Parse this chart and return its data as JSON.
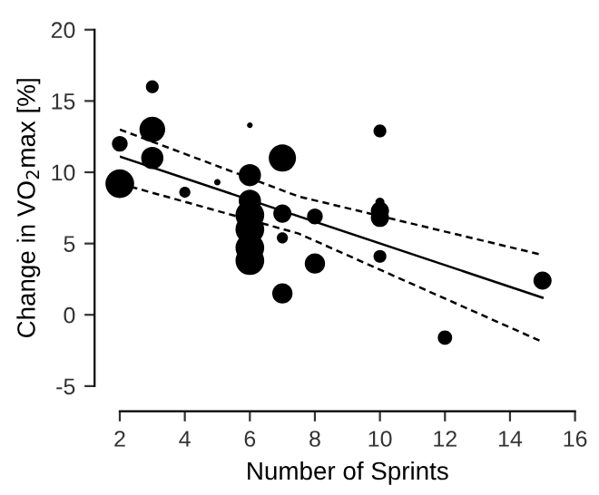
{
  "chart_data": {
    "type": "bubble",
    "xlabel": "Number of Sprints",
    "ylabel": "Change in VO$_{2}$max [%]",
    "xlim": [
      2,
      16
    ],
    "ylim": [
      -5,
      20
    ],
    "xticks": [
      2,
      4,
      6,
      8,
      10,
      12,
      14,
      16
    ],
    "yticks": [
      -5,
      0,
      5,
      10,
      15,
      20
    ],
    "grid": false,
    "series": [
      {
        "color": "#000000",
        "x": [
          2,
          2,
          3,
          3,
          3,
          4,
          5,
          6,
          6,
          6,
          6,
          6,
          6.0,
          6,
          7,
          7,
          7,
          7,
          8,
          8,
          10,
          10,
          10,
          10,
          10,
          12,
          15
        ],
        "values": [
          12,
          9.2,
          16,
          13,
          11,
          8.6,
          9.3,
          13.3,
          9.8,
          8.0,
          7.0,
          6.0,
          4.7,
          3.8,
          11,
          7.1,
          5.4,
          1.5,
          6.9,
          3.6,
          12.9,
          7.9,
          7.3,
          6.8,
          4.1,
          -1.6,
          2.4
        ],
        "sizes": [
          0.3,
          1,
          0.2,
          0.8,
          0.6,
          0.15,
          0.05,
          0.04,
          0.6,
          0.6,
          1,
          1,
          1,
          1,
          0.9,
          0.4,
          0.15,
          0.5,
          0.3,
          0.5,
          0.2,
          0.1,
          0.4,
          0.4,
          0.2,
          0.25,
          0.4
        ]
      },
      {
        "type": "line",
        "color": "#000000",
        "line_style": "solid",
        "x": [
          2,
          15
        ],
        "values": [
          11.1,
          1.2
        ]
      },
      {
        "type": "line",
        "color": "#000000",
        "line_style": "dashed",
        "x": [
          2,
          7.5,
          15
        ],
        "values": [
          13.0,
          8.3,
          4.2
        ]
      },
      {
        "type": "line",
        "color": "#000000",
        "line_style": "dashed",
        "x": [
          2,
          7.5,
          15
        ],
        "values": [
          9.2,
          5.7,
          -1.9
        ]
      }
    ]
  }
}
